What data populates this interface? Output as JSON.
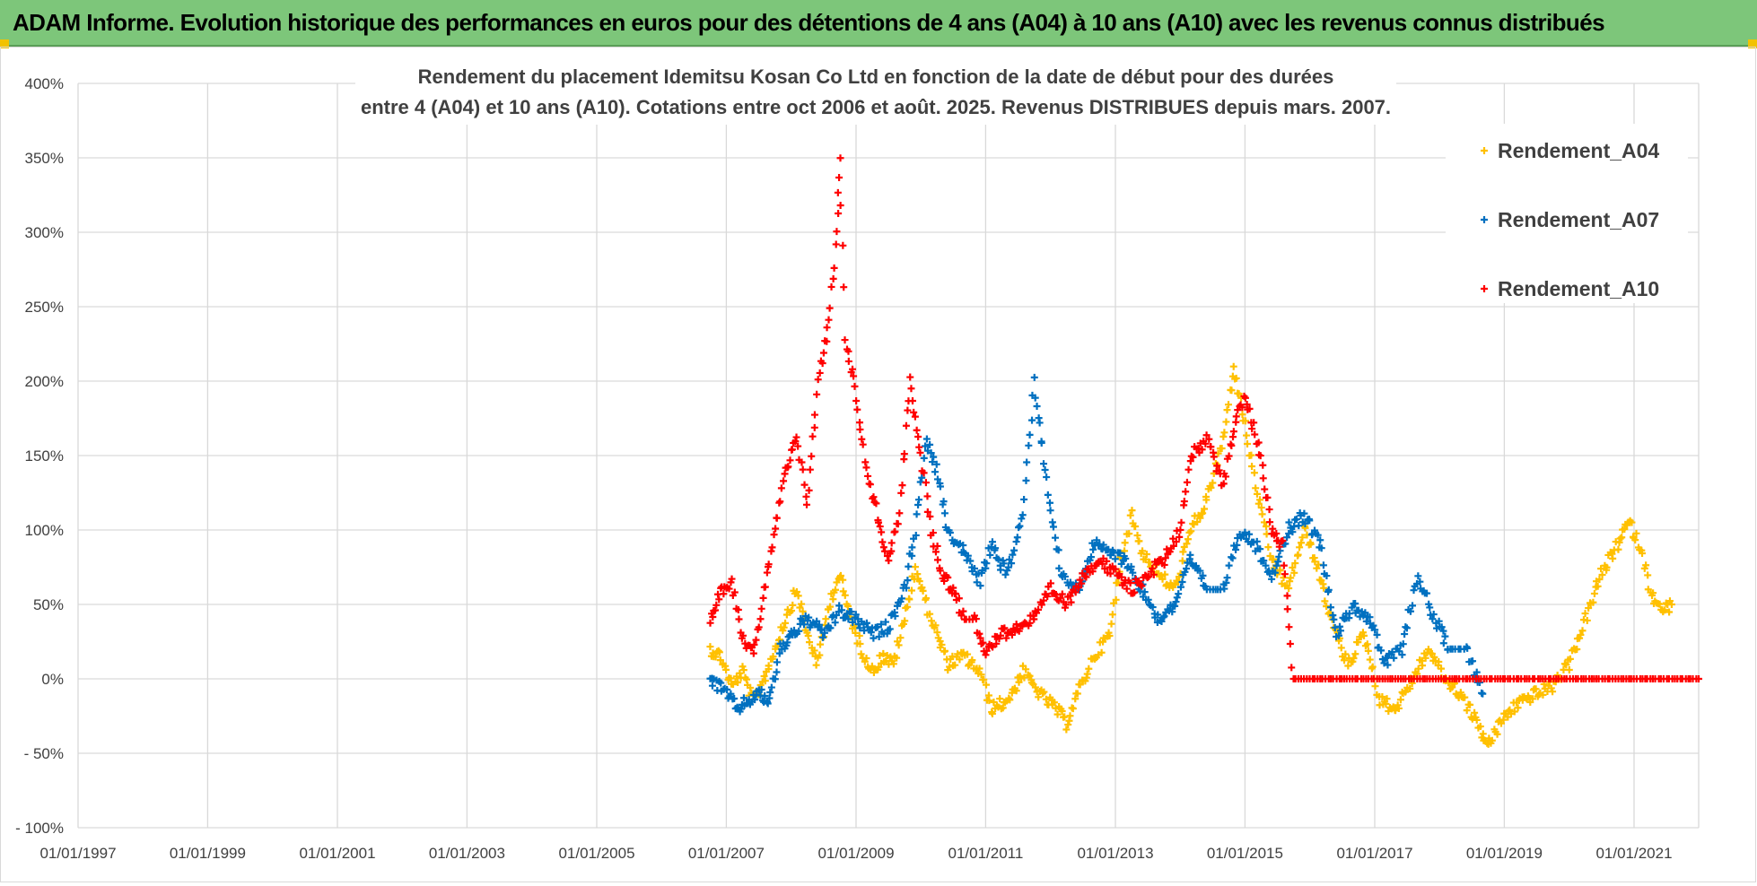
{
  "header": {
    "title": "ADAM Informe. Evolution historique des performances en euros pour des détentions de 4 ans (A04) à 10 ans (A10) avec les revenus connus distribués"
  },
  "colors": {
    "header_bg": "#7dc67a",
    "A04": "#ffc000",
    "A07": "#0070c0",
    "A10": "#ff0000",
    "grid": "#d9d9d9"
  },
  "chart_data": {
    "type": "scatter",
    "title_lines": [
      "Rendement du placement Idemitsu Kosan Co Ltd en fonction de la date de début pour des durées",
      "entre 4 (A04) et 10 ans (A10).  Cotations entre oct 2006 et août. 2025. Revenus DISTRIBUES depuis mars. 2007."
    ],
    "xlabel": "",
    "ylabel": "",
    "x_range": [
      "1997-01-01",
      "2021-12-31"
    ],
    "x_tick_labels": [
      "01/01/1997",
      "01/01/1999",
      "01/01/2001",
      "01/01/2003",
      "01/01/2005",
      "01/01/2007",
      "01/01/2009",
      "01/01/2011",
      "01/01/2013",
      "01/01/2015",
      "01/01/2017",
      "01/01/2019",
      "01/01/2021"
    ],
    "ylim": [
      -100,
      400
    ],
    "y_tick_labels": [
      "400%",
      "350%",
      "300%",
      "250%",
      "200%",
      "150%",
      "100%",
      "50%",
      "0%",
      "- 50%",
      "- 100%"
    ],
    "grid": true,
    "legend_position": "top-right",
    "series": [
      {
        "name": "Rendement_A04",
        "color": "#ffc000",
        "points": [
          [
            "2006-10-01",
            20
          ],
          [
            "2006-12-01",
            15
          ],
          [
            "2007-02-01",
            -5
          ],
          [
            "2007-04-01",
            5
          ],
          [
            "2007-06-01",
            -15
          ],
          [
            "2007-08-01",
            0
          ],
          [
            "2007-10-01",
            20
          ],
          [
            "2007-12-01",
            40
          ],
          [
            "2008-02-01",
            60
          ],
          [
            "2008-04-01",
            30
          ],
          [
            "2008-06-01",
            10
          ],
          [
            "2008-08-01",
            50
          ],
          [
            "2008-10-01",
            70
          ],
          [
            "2008-12-01",
            40
          ],
          [
            "2009-02-01",
            20
          ],
          [
            "2009-04-01",
            5
          ],
          [
            "2009-06-01",
            15
          ],
          [
            "2009-08-01",
            10
          ],
          [
            "2009-10-01",
            40
          ],
          [
            "2009-12-01",
            75
          ],
          [
            "2010-02-01",
            50
          ],
          [
            "2010-04-01",
            30
          ],
          [
            "2010-06-01",
            10
          ],
          [
            "2010-09-01",
            15
          ],
          [
            "2010-12-01",
            5
          ],
          [
            "2011-02-01",
            -20
          ],
          [
            "2011-05-01",
            -15
          ],
          [
            "2011-08-01",
            5
          ],
          [
            "2011-11-01",
            -10
          ],
          [
            "2012-02-01",
            -20
          ],
          [
            "2012-04-01",
            -30
          ],
          [
            "2012-06-01",
            -10
          ],
          [
            "2012-09-01",
            15
          ],
          [
            "2012-12-01",
            30
          ],
          [
            "2013-02-01",
            80
          ],
          [
            "2013-04-01",
            110
          ],
          [
            "2013-06-01",
            85
          ],
          [
            "2013-09-01",
            70
          ],
          [
            "2013-12-01",
            60
          ],
          [
            "2014-03-01",
            100
          ],
          [
            "2014-06-01",
            120
          ],
          [
            "2014-09-01",
            160
          ],
          [
            "2014-11-01",
            210
          ],
          [
            "2015-01-01",
            170
          ],
          [
            "2015-03-01",
            130
          ],
          [
            "2015-06-01",
            80
          ],
          [
            "2015-09-01",
            60
          ],
          [
            "2015-12-01",
            100
          ],
          [
            "2016-02-01",
            80
          ],
          [
            "2016-05-01",
            40
          ],
          [
            "2016-08-01",
            10
          ],
          [
            "2016-11-01",
            30
          ],
          [
            "2017-02-01",
            -15
          ],
          [
            "2017-05-01",
            -20
          ],
          [
            "2017-08-01",
            0
          ],
          [
            "2017-11-01",
            20
          ],
          [
            "2018-02-01",
            0
          ],
          [
            "2018-05-01",
            -10
          ],
          [
            "2018-08-01",
            -30
          ],
          [
            "2018-10-01",
            -45
          ],
          [
            "2019-01-01",
            -25
          ],
          [
            "2019-04-01",
            -15
          ],
          [
            "2019-07-01",
            -10
          ],
          [
            "2019-10-01",
            -5
          ],
          [
            "2020-01-01",
            10
          ],
          [
            "2020-04-01",
            40
          ],
          [
            "2020-07-01",
            70
          ],
          [
            "2020-10-01",
            90
          ],
          [
            "2020-12-01",
            105
          ],
          [
            "2021-02-01",
            90
          ],
          [
            "2021-04-01",
            60
          ],
          [
            "2021-06-01",
            45
          ],
          [
            "2021-08-01",
            50
          ]
        ]
      },
      {
        "name": "Rendement_A07",
        "color": "#0070c0",
        "points": [
          [
            "2006-10-01",
            0
          ],
          [
            "2007-01-01",
            -10
          ],
          [
            "2007-03-01",
            -20
          ],
          [
            "2007-05-01",
            -15
          ],
          [
            "2007-07-01",
            -10
          ],
          [
            "2007-09-01",
            -15
          ],
          [
            "2007-11-01",
            20
          ],
          [
            "2008-01-01",
            30
          ],
          [
            "2008-04-01",
            40
          ],
          [
            "2008-07-01",
            30
          ],
          [
            "2008-10-01",
            45
          ],
          [
            "2009-01-01",
            40
          ],
          [
            "2009-04-01",
            30
          ],
          [
            "2009-07-01",
            35
          ],
          [
            "2009-10-01",
            60
          ],
          [
            "2009-12-01",
            100
          ],
          [
            "2010-02-01",
            160
          ],
          [
            "2010-04-01",
            140
          ],
          [
            "2010-06-01",
            100
          ],
          [
            "2010-09-01",
            85
          ],
          [
            "2010-12-01",
            65
          ],
          [
            "2011-02-01",
            90
          ],
          [
            "2011-05-01",
            70
          ],
          [
            "2011-08-01",
            110
          ],
          [
            "2011-10-01",
            200
          ],
          [
            "2011-12-01",
            140
          ],
          [
            "2012-03-01",
            70
          ],
          [
            "2012-06-01",
            60
          ],
          [
            "2012-09-01",
            90
          ],
          [
            "2012-12-01",
            85
          ],
          [
            "2013-03-01",
            80
          ],
          [
            "2013-06-01",
            60
          ],
          [
            "2013-09-01",
            40
          ],
          [
            "2013-12-01",
            50
          ],
          [
            "2014-03-01",
            80
          ],
          [
            "2014-06-01",
            60
          ],
          [
            "2014-09-01",
            60
          ],
          [
            "2014-12-01",
            100
          ],
          [
            "2015-03-01",
            90
          ],
          [
            "2015-06-01",
            70
          ],
          [
            "2015-09-01",
            100
          ],
          [
            "2015-12-01",
            110
          ],
          [
            "2016-03-01",
            90
          ],
          [
            "2016-06-01",
            30
          ],
          [
            "2016-09-01",
            50
          ],
          [
            "2016-12-01",
            40
          ],
          [
            "2017-03-01",
            10
          ],
          [
            "2017-06-01",
            20
          ],
          [
            "2017-09-01",
            70
          ],
          [
            "2017-12-01",
            40
          ],
          [
            "2018-03-01",
            20
          ],
          [
            "2018-06-01",
            20
          ],
          [
            "2018-09-01",
            -10
          ]
        ]
      },
      {
        "name": "Rendement_A10",
        "color": "#ff0000",
        "points": [
          [
            "2006-10-01",
            40
          ],
          [
            "2006-12-01",
            60
          ],
          [
            "2007-02-01",
            65
          ],
          [
            "2007-04-01",
            30
          ],
          [
            "2007-06-01",
            15
          ],
          [
            "2007-08-01",
            60
          ],
          [
            "2007-10-01",
            100
          ],
          [
            "2007-12-01",
            140
          ],
          [
            "2008-02-01",
            160
          ],
          [
            "2008-04-01",
            120
          ],
          [
            "2008-06-01",
            200
          ],
          [
            "2008-08-01",
            240
          ],
          [
            "2008-09-15",
            300
          ],
          [
            "2008-10-01",
            352
          ],
          [
            "2008-11-01",
            230
          ],
          [
            "2009-01-01",
            190
          ],
          [
            "2009-03-01",
            140
          ],
          [
            "2009-05-01",
            110
          ],
          [
            "2009-07-01",
            80
          ],
          [
            "2009-09-01",
            110
          ],
          [
            "2009-11-01",
            200
          ],
          [
            "2010-01-01",
            150
          ],
          [
            "2010-03-01",
            100
          ],
          [
            "2010-05-01",
            70
          ],
          [
            "2010-07-01",
            60
          ],
          [
            "2010-09-01",
            40
          ],
          [
            "2010-11-01",
            40
          ],
          [
            "2011-01-01",
            20
          ],
          [
            "2011-04-01",
            30
          ],
          [
            "2011-07-01",
            35
          ],
          [
            "2011-10-01",
            40
          ],
          [
            "2012-01-01",
            60
          ],
          [
            "2012-04-01",
            50
          ],
          [
            "2012-07-01",
            70
          ],
          [
            "2012-10-01",
            80
          ],
          [
            "2013-01-01",
            70
          ],
          [
            "2013-04-01",
            60
          ],
          [
            "2013-07-01",
            70
          ],
          [
            "2013-10-01",
            80
          ],
          [
            "2014-01-01",
            100
          ],
          [
            "2014-03-01",
            150
          ],
          [
            "2014-06-01",
            160
          ],
          [
            "2014-09-01",
            130
          ],
          [
            "2014-11-01",
            170
          ],
          [
            "2015-01-01",
            190
          ],
          [
            "2015-04-01",
            150
          ],
          [
            "2015-06-01",
            100
          ],
          [
            "2015-08-01",
            90
          ],
          [
            "2015-10-01",
            0
          ],
          [
            "2021-12-31",
            0
          ]
        ]
      }
    ]
  }
}
